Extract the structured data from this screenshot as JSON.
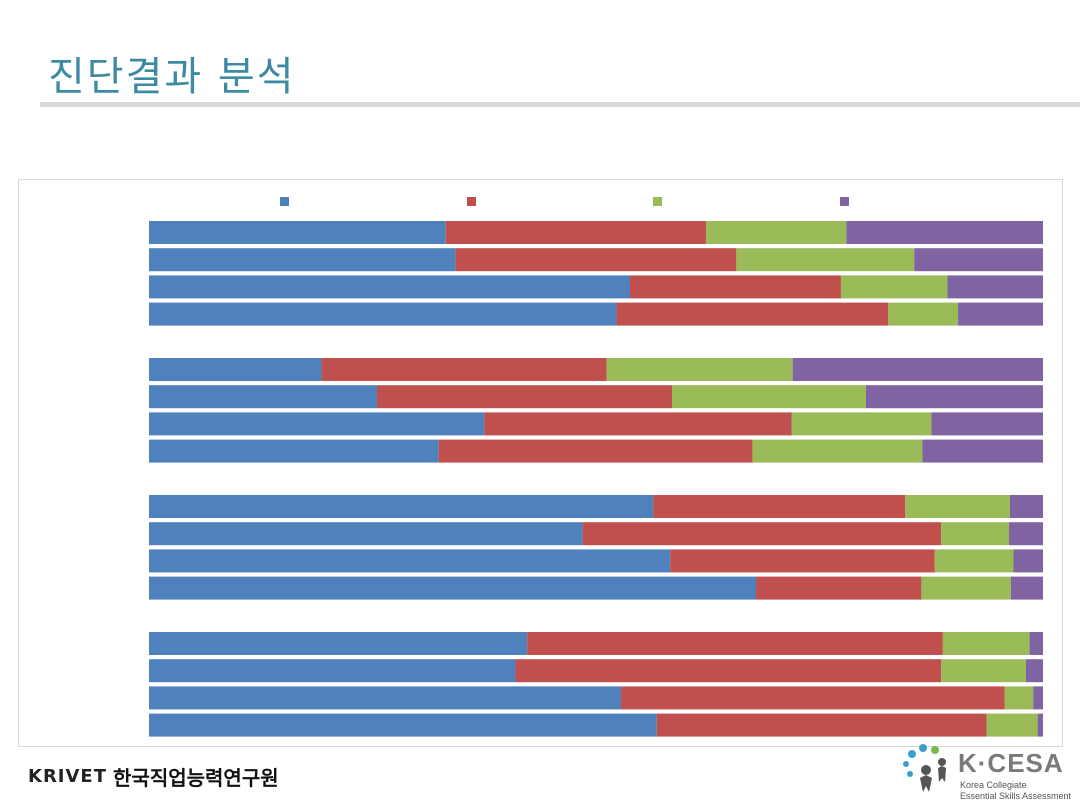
{
  "slide": {
    "title": "진단결과 분석"
  },
  "footer": {
    "krivet_logo_text": "KRIVET",
    "krivet_org_name": "한국직업능력연구원",
    "kcesa_name": "K·CESA",
    "kcesa_line1": "Korea Collegiate",
    "kcesa_line2": "Essential Skills Assessment"
  },
  "colors": {
    "title": "#3d8aa3",
    "series": [
      "#4f81bd",
      "#c0504d",
      "#9bbb59",
      "#8064a2"
    ]
  },
  "chart_data": {
    "type": "bar",
    "orientation": "horizontal",
    "stacked": true,
    "normalized": true,
    "legend": "top",
    "xlim": [
      0,
      100
    ],
    "groups": 4,
    "bars_per_group": 4,
    "series": [
      {
        "values": [
          33.2,
          34.3,
          53.8,
          52.3,
          19.3,
          25.5,
          37.5,
          32.4,
          56.4,
          48.5,
          58.3,
          67.9,
          42.3,
          41.0,
          52.8,
          56.8
        ]
      },
      {
        "values": [
          29.1,
          31.4,
          23.6,
          30.4,
          31.9,
          33.0,
          34.4,
          35.1,
          28.2,
          40.1,
          29.6,
          18.5,
          46.5,
          47.6,
          42.9,
          36.9
        ]
      },
      {
        "values": [
          15.7,
          19.9,
          11.9,
          7.8,
          20.8,
          21.7,
          15.6,
          19.0,
          11.7,
          7.6,
          8.8,
          10.0,
          9.7,
          9.5,
          3.2,
          5.7
        ]
      },
      {
        "values": [
          22.0,
          14.4,
          10.7,
          9.5,
          28.0,
          19.8,
          12.5,
          13.5,
          3.7,
          3.8,
          3.3,
          3.6,
          1.5,
          1.9,
          1.1,
          0.6
        ]
      }
    ]
  }
}
